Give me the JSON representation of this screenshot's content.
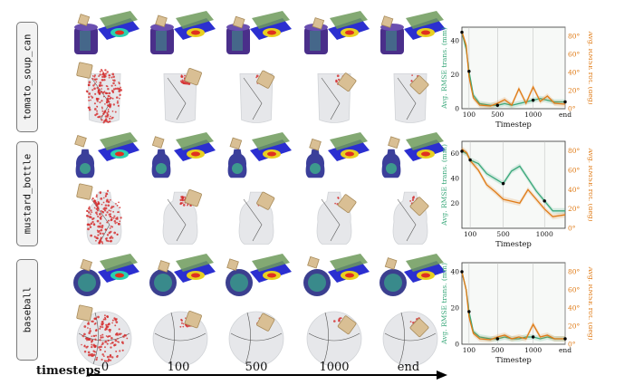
{
  "rows": [
    {
      "label": "tomato_soup_can",
      "shape": "can"
    },
    {
      "label": "mustard_bottle",
      "shape": "bottle"
    },
    {
      "label": "baseball",
      "shape": "ball"
    }
  ],
  "timeline": {
    "label": "timesteps",
    "ticks": [
      "0",
      "100",
      "500",
      "1000",
      "end"
    ]
  },
  "colors": {
    "trans": "#3aa87a",
    "rot": "#e07b16",
    "contact_red": "#d42a2a",
    "mesh_gray": "#c9ccd1",
    "cube": "#d9bf94"
  },
  "chart_data": [
    {
      "type": "line",
      "xlabel": "Timestep",
      "ylabel_left": "Avg. RMSE trans. (mm)",
      "ylabel_right": "Avg. RMSE rot. (deg)",
      "xticks": [
        "100",
        "500",
        "1000",
        "end"
      ],
      "yticks_left": [
        "0",
        "20",
        "40"
      ],
      "yticks_right": [
        "0°",
        "20°",
        "40°",
        "60°",
        "80°"
      ],
      "ylim_left": [
        0,
        48
      ],
      "ylim_right": [
        0,
        90
      ],
      "xlim": [
        0,
        1450
      ],
      "series": [
        {
          "axis": "left",
          "x": [
            0,
            60,
            100,
            160,
            250,
            400,
            500,
            600,
            700,
            800,
            900,
            1000,
            1100,
            1200,
            1300,
            1450
          ],
          "values": [
            45,
            35,
            22,
            8,
            3,
            2,
            2,
            3,
            2,
            3,
            4,
            5,
            6,
            5,
            4,
            4
          ]
        },
        {
          "axis": "right",
          "x": [
            0,
            60,
            100,
            160,
            250,
            400,
            500,
            600,
            700,
            800,
            900,
            1000,
            1100,
            1200,
            1300,
            1450
          ],
          "values": [
            85,
            70,
            35,
            12,
            4,
            3,
            6,
            10,
            4,
            22,
            6,
            24,
            8,
            14,
            6,
            5
          ]
        }
      ]
    },
    {
      "type": "line",
      "xlabel": "Timestep",
      "ylabel_left": "Avg. RMSE trans. (mm)",
      "ylabel_right": "Avg. RMSE rot. (deg)",
      "xticks": [
        "100",
        "500",
        "1000"
      ],
      "yticks_left": [
        "20",
        "40",
        "60"
      ],
      "yticks_right": [
        "0°",
        "20°",
        "40°",
        "60°",
        "80°"
      ],
      "ylim_left": [
        0,
        70
      ],
      "ylim_right": [
        0,
        90
      ],
      "xlim": [
        0,
        1250
      ],
      "series": [
        {
          "axis": "left",
          "x": [
            0,
            60,
            100,
            200,
            300,
            400,
            500,
            600,
            700,
            800,
            900,
            1000,
            1100,
            1250
          ],
          "values": [
            62,
            60,
            55,
            52,
            44,
            40,
            36,
            46,
            50,
            40,
            30,
            22,
            14,
            14
          ]
        },
        {
          "axis": "right",
          "x": [
            0,
            60,
            100,
            200,
            300,
            400,
            500,
            600,
            700,
            800,
            900,
            1000,
            1100,
            1250
          ],
          "values": [
            82,
            78,
            70,
            60,
            45,
            38,
            30,
            28,
            26,
            40,
            30,
            20,
            12,
            14
          ]
        }
      ]
    },
    {
      "type": "line",
      "xlabel": "Timestep",
      "ylabel_left": "Avg. RMSE trans. (mm)",
      "ylabel_right": "Avg. RMSE rot. (deg)",
      "xticks": [
        "100",
        "500",
        "1000",
        "end"
      ],
      "yticks_left": [
        "0",
        "20",
        "40"
      ],
      "yticks_right": [
        "0°",
        "20°",
        "40°",
        "60°",
        "80°"
      ],
      "ylim_left": [
        0,
        45
      ],
      "ylim_right": [
        0,
        90
      ],
      "xlim": [
        0,
        1450
      ],
      "series": [
        {
          "axis": "left",
          "x": [
            0,
            60,
            100,
            160,
            250,
            400,
            500,
            600,
            700,
            800,
            900,
            1000,
            1100,
            1200,
            1300,
            1450
          ],
          "values": [
            40,
            30,
            18,
            7,
            4,
            3,
            3,
            4,
            3,
            3,
            4,
            4,
            3,
            4,
            3,
            3
          ]
        },
        {
          "axis": "right",
          "x": [
            0,
            60,
            100,
            160,
            250,
            400,
            500,
            600,
            700,
            800,
            900,
            1000,
            1100,
            1200,
            1300,
            1450
          ],
          "values": [
            80,
            60,
            30,
            12,
            6,
            5,
            8,
            10,
            6,
            8,
            6,
            22,
            8,
            10,
            6,
            6
          ]
        }
      ]
    }
  ]
}
